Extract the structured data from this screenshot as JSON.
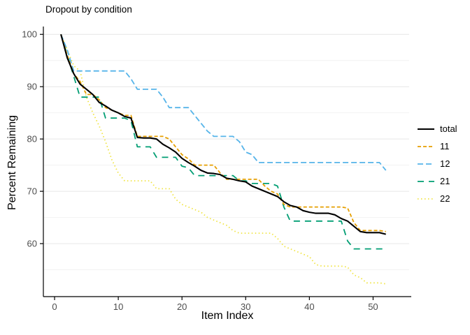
{
  "chart_data": {
    "type": "line",
    "title": "Dropout by condition",
    "xlabel": "Item Index",
    "ylabel": "Percent Remaining",
    "x_ticks": [
      0,
      10,
      20,
      30,
      40,
      50
    ],
    "y_ticks": [
      100,
      90,
      80,
      70,
      60
    ],
    "y_minor_gridlines": [
      95,
      85,
      75,
      65,
      55
    ],
    "xlim": [
      -1.76,
      55.66
    ],
    "ylim": [
      49.87,
      101.5
    ],
    "grid": "horizontal-only",
    "legend_position": "right",
    "x": [
      1,
      2,
      3,
      4,
      5,
      6,
      7,
      8,
      9,
      10,
      11,
      12,
      13,
      14,
      15,
      16,
      17,
      18,
      19,
      20,
      21,
      22,
      23,
      24,
      25,
      26,
      27,
      28,
      29,
      30,
      31,
      32,
      33,
      34,
      35,
      36,
      37,
      38,
      39,
      40,
      41,
      42,
      43,
      44,
      45,
      46,
      47,
      48,
      49,
      50,
      51,
      52
    ],
    "series": [
      {
        "name": "total",
        "color": "#000000",
        "dash": "solid",
        "width": 2.1,
        "values": [
          100,
          95.5,
          92.5,
          90.5,
          89.5,
          88.5,
          87,
          86.3,
          85.5,
          85,
          84.3,
          84,
          80.3,
          80.2,
          80.2,
          80,
          79,
          78.3,
          77.5,
          76.3,
          75.5,
          74.8,
          74,
          73.5,
          73.4,
          73.2,
          72.5,
          72.3,
          72,
          71.8,
          71,
          70.5,
          70,
          69.5,
          69,
          68,
          67.3,
          67,
          66.3,
          66,
          65.8,
          65.8,
          65.8,
          65.5,
          64.8,
          64.3,
          63.3,
          62.3,
          62.1,
          62.1,
          62.1,
          61.8
        ]
      },
      {
        "name": "11",
        "color": "#E69F00",
        "dash": "5,3",
        "width": 1.8,
        "values": [
          100,
          96,
          92.5,
          91,
          88.5,
          88.5,
          87.5,
          86,
          85.5,
          85,
          84.5,
          84.5,
          80.5,
          80.5,
          80.5,
          80.5,
          80.5,
          80,
          78.5,
          77,
          76.2,
          75,
          75,
          75,
          75,
          73.5,
          72.3,
          72.3,
          72.3,
          72.3,
          72.3,
          72.3,
          71,
          70,
          69.5,
          67.5,
          67,
          67,
          67,
          67,
          67,
          67,
          67,
          67,
          67,
          66.8,
          64,
          62.5,
          62.5,
          62.5,
          62.5,
          62.3
        ]
      },
      {
        "name": "12",
        "color": "#56B4E9",
        "dash": "8,4",
        "width": 1.8,
        "values": [
          100,
          97,
          93,
          93,
          93,
          93,
          93,
          93,
          93,
          93,
          93,
          91.5,
          89.5,
          89.5,
          89.5,
          89.5,
          88,
          86,
          86,
          86,
          86,
          84.5,
          83,
          81.5,
          80.5,
          80.5,
          80.5,
          80.5,
          79.5,
          77.5,
          77,
          75.5,
          75.5,
          75.5,
          75.5,
          75.5,
          75.5,
          75.5,
          75.5,
          75.5,
          75.5,
          75.5,
          75.5,
          75.5,
          75.5,
          75.5,
          75.5,
          75.5,
          75.5,
          75.5,
          75.5,
          74
        ]
      },
      {
        "name": "21",
        "color": "#009E73",
        "dash": "9,7",
        "width": 1.8,
        "values": [
          100,
          96,
          92,
          88,
          88,
          88,
          88,
          84,
          84,
          84,
          84,
          83.5,
          78.5,
          78.5,
          78.5,
          76.5,
          76.5,
          76.5,
          76.5,
          74.8,
          74.5,
          73,
          73,
          73,
          73,
          73,
          73,
          73,
          72,
          72,
          71.5,
          71.5,
          71.5,
          71.5,
          71,
          67,
          64.3,
          64.3,
          64.3,
          64.3,
          64.3,
          64.3,
          64.3,
          64.3,
          64.3,
          60.5,
          59,
          59,
          59,
          59,
          59,
          59
        ]
      },
      {
        "name": "22",
        "color": "#F0E442",
        "dash": "1.5,3.5",
        "width": 1.8,
        "values": [
          100,
          97,
          94,
          93,
          88,
          85,
          82.5,
          79.5,
          76,
          73.5,
          72,
          72,
          72,
          72,
          72,
          70.5,
          70.5,
          70.5,
          68.5,
          67.5,
          67,
          66.5,
          66,
          65,
          64.5,
          64,
          63.5,
          62.5,
          62,
          62,
          62,
          62,
          62,
          62,
          61,
          59.5,
          59,
          58.5,
          58,
          57.5,
          56,
          55.7,
          55.7,
          55.7,
          55.7,
          55.5,
          54,
          53.5,
          52.5,
          52.5,
          52.5,
          52.3
        ]
      }
    ]
  },
  "colors": {
    "background": "#ffffff",
    "axis_line": "#000000",
    "tick_text": "#4d4d4d",
    "grid_major": "#e6e6e6",
    "grid_minor": "#f2f2f2",
    "title_text": "#000000"
  }
}
